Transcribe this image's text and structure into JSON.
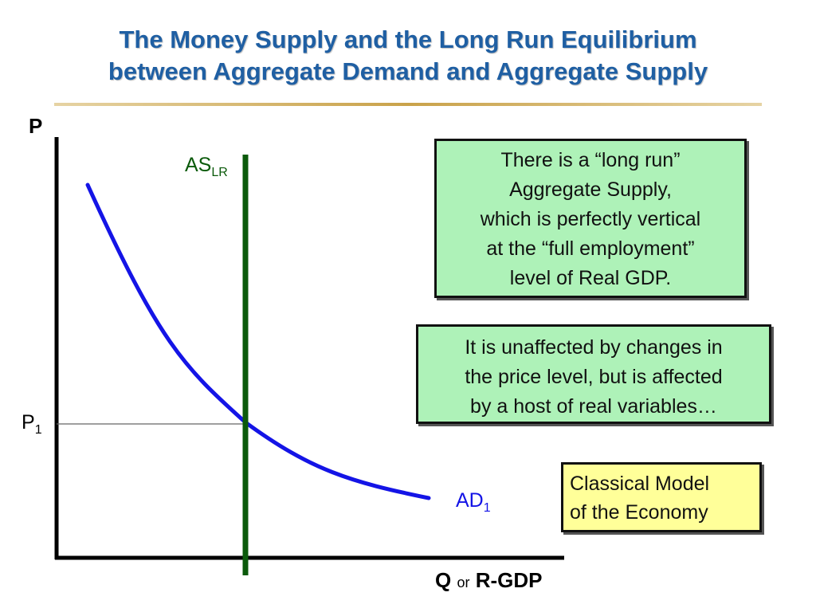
{
  "title": {
    "line1": "The Money Supply and the Long Run Equilibrium",
    "line2": "between Aggregate Demand and Aggregate Supply"
  },
  "axes": {
    "y_label": "P",
    "x_label_q": "Q",
    "x_label_or": "or",
    "x_label_rgdp": "R-GDP",
    "p1_main": "P",
    "p1_sub": "1"
  },
  "curves": {
    "as_main": "AS",
    "as_sub": "LR",
    "as_color": "#0b5a0b",
    "ad_main": "AD",
    "ad_sub": "1",
    "ad_color": "#1414e6"
  },
  "boxes": {
    "box1_lines": [
      "There is a “long run”",
      "Aggregate Supply,",
      "which is perfectly vertical",
      "at the “full employment”",
      "level of Real GDP."
    ],
    "box2_lines": [
      "It is unaffected by changes in",
      "the price level, but is affected",
      "by a host of real variables…"
    ],
    "box3_lines": [
      "Classical Model",
      "of the Economy"
    ],
    "green_fill": "#aef2b8",
    "yellow_fill": "#ffff99"
  }
}
